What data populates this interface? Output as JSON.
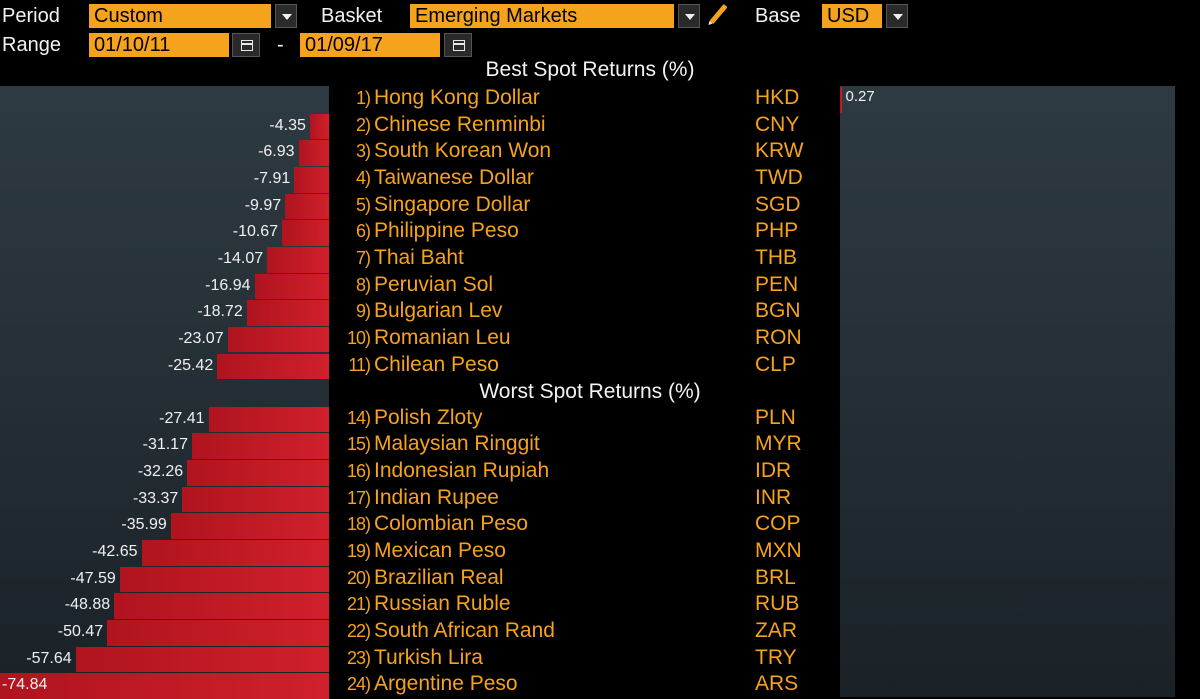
{
  "controls": {
    "period_label": "Period",
    "period_value": "Custom",
    "basket_label": "Basket",
    "basket_value": "Emerging Markets",
    "base_label": "Base",
    "base_value": "USD",
    "range_label": "Range",
    "range_start": "01/10/11",
    "range_sep": "-",
    "range_end": "01/09/17"
  },
  "icons": {
    "dropdown": "chevron-down-icon",
    "calendar": "calendar-icon",
    "edit": "pencil-icon"
  },
  "colors": {
    "accent": "#f5a21d",
    "negative_bar": "#c41b26",
    "panel": "#24313a",
    "background": "#000000"
  },
  "chart_data": {
    "type": "bar",
    "orientation": "horizontal",
    "xlim": [
      -74.84,
      0.27
    ],
    "sections": [
      {
        "title": "Best Spot Returns (%)",
        "rows": [
          {
            "rank": "1)",
            "name": "Hong Kong Dollar",
            "code": "HKD",
            "value": 0.27
          },
          {
            "rank": "2)",
            "name": "Chinese Renminbi",
            "code": "CNY",
            "value": -4.35
          },
          {
            "rank": "3)",
            "name": "South Korean Won",
            "code": "KRW",
            "value": -6.93
          },
          {
            "rank": "4)",
            "name": "Taiwanese Dollar",
            "code": "TWD",
            "value": -7.91
          },
          {
            "rank": "5)",
            "name": "Singapore Dollar",
            "code": "SGD",
            "value": -9.97
          },
          {
            "rank": "6)",
            "name": "Philippine Peso",
            "code": "PHP",
            "value": -10.67
          },
          {
            "rank": "7)",
            "name": "Thai Baht",
            "code": "THB",
            "value": -14.07
          },
          {
            "rank": "8)",
            "name": "Peruvian Sol",
            "code": "PEN",
            "value": -16.94
          },
          {
            "rank": "9)",
            "name": "Bulgarian Lev",
            "code": "BGN",
            "value": -18.72
          },
          {
            "rank": "10)",
            "name": "Romanian Leu",
            "code": "RON",
            "value": -23.07
          },
          {
            "rank": "11)",
            "name": "Chilean Peso",
            "code": "CLP",
            "value": -25.42
          }
        ]
      },
      {
        "title": "Worst Spot Returns (%)",
        "rows": [
          {
            "rank": "14)",
            "name": "Polish Zloty",
            "code": "PLN",
            "value": -27.41
          },
          {
            "rank": "15)",
            "name": "Malaysian Ringgit",
            "code": "MYR",
            "value": -31.17
          },
          {
            "rank": "16)",
            "name": "Indonesian Rupiah",
            "code": "IDR",
            "value": -32.26
          },
          {
            "rank": "17)",
            "name": "Indian Rupee",
            "code": "INR",
            "value": -33.37
          },
          {
            "rank": "18)",
            "name": "Colombian Peso",
            "code": "COP",
            "value": -35.99
          },
          {
            "rank": "19)",
            "name": "Mexican Peso",
            "code": "MXN",
            "value": -42.65
          },
          {
            "rank": "20)",
            "name": "Brazilian Real",
            "code": "BRL",
            "value": -47.59
          },
          {
            "rank": "21)",
            "name": "Russian Ruble",
            "code": "RUB",
            "value": -48.88
          },
          {
            "rank": "22)",
            "name": "South African Rand",
            "code": "ZAR",
            "value": -50.47
          },
          {
            "rank": "23)",
            "name": "Turkish Lira",
            "code": "TRY",
            "value": -57.64
          },
          {
            "rank": "24)",
            "name": "Argentine Peso",
            "code": "ARS",
            "value": -74.84
          }
        ]
      }
    ]
  }
}
